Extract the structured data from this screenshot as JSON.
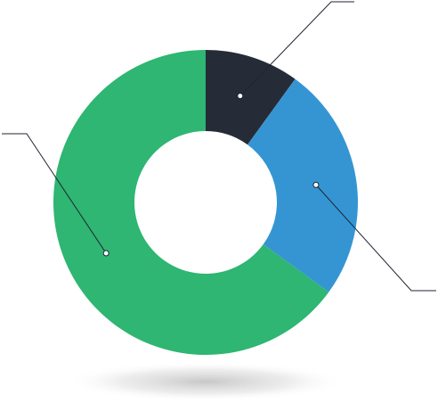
{
  "chart_data": {
    "type": "pie",
    "variant": "donut",
    "slices": [
      {
        "value": 10,
        "color": "#252c38"
      },
      {
        "value": 25,
        "color": "#3595d3"
      },
      {
        "value": 65,
        "color": "#2eb672"
      }
    ],
    "legend": "none",
    "title": "",
    "colors": {
      "leader_line": "#1f2530",
      "shadow": "#cfcfcf"
    }
  }
}
